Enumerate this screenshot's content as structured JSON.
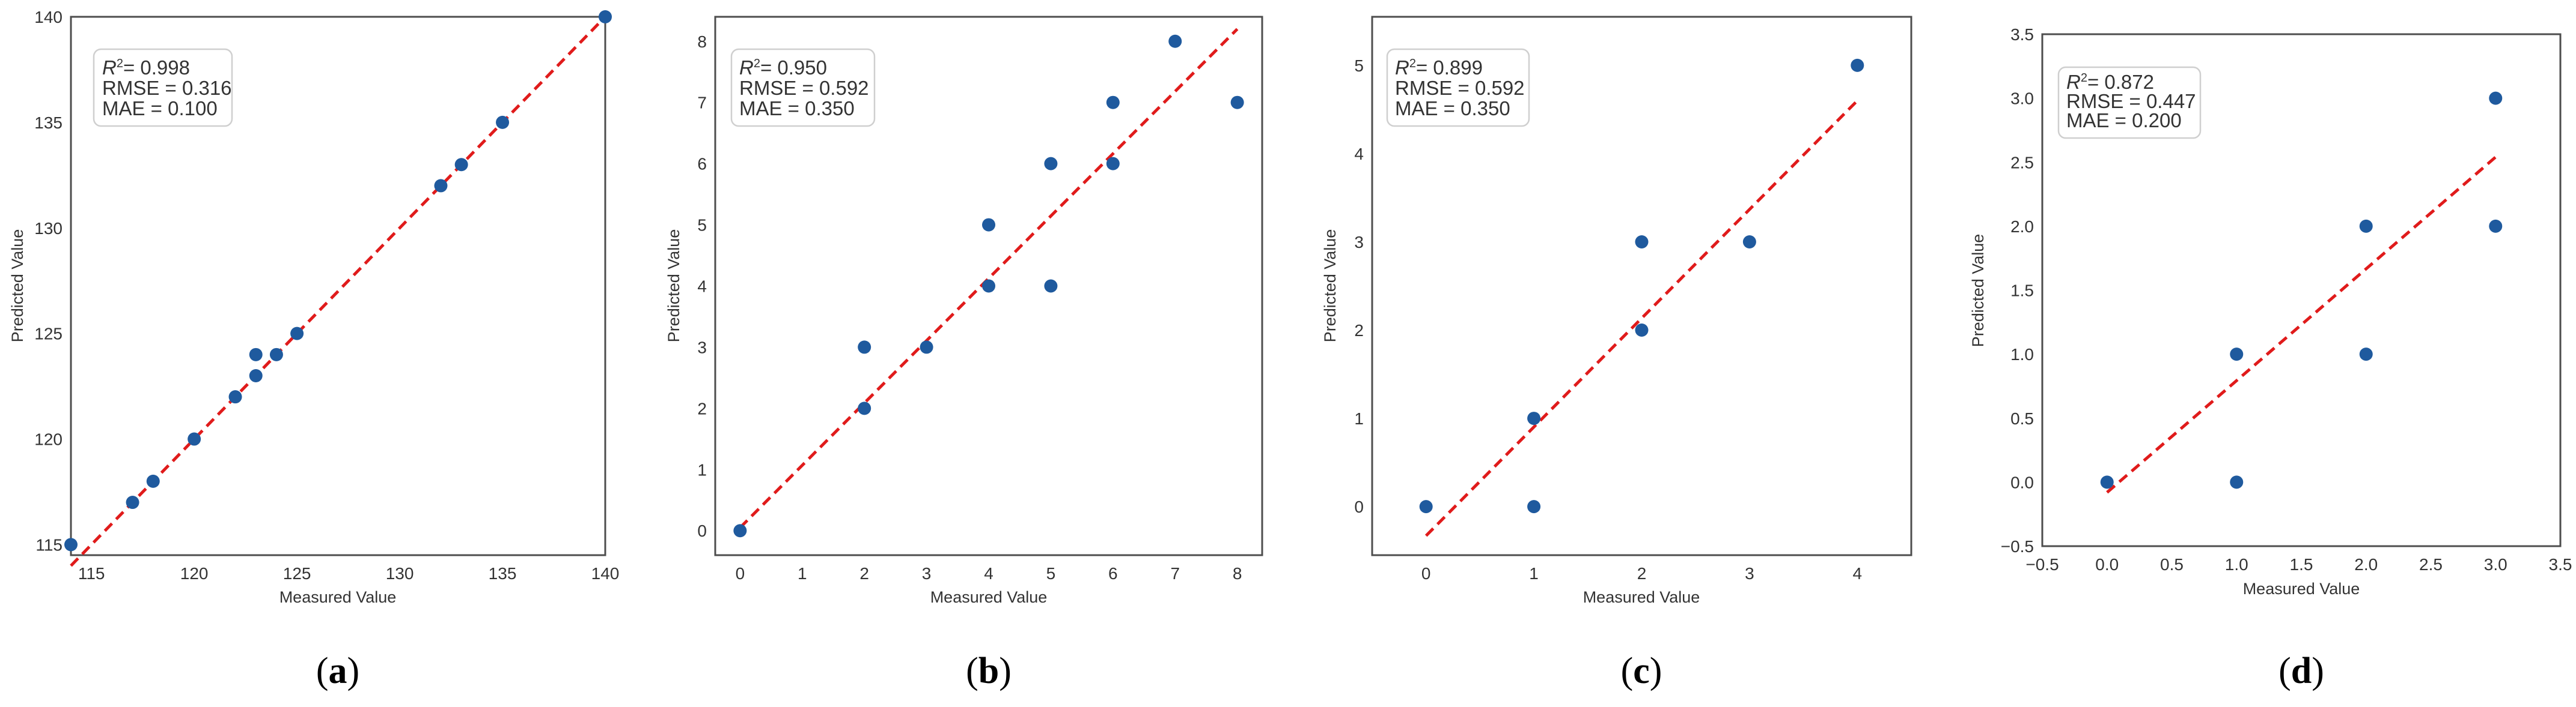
{
  "chart_data": [
    {
      "type": "scatter",
      "panel_label": "a",
      "caption": {
        "open": "(",
        "letter": "a",
        "close": ")"
      },
      "xlabel": "Measured Value",
      "ylabel": "Predicted Value",
      "xlim": [
        114,
        140
      ],
      "ylim": [
        114.5,
        140
      ],
      "xticks": [
        115,
        120,
        125,
        130,
        135,
        140
      ],
      "yticks": [
        115,
        120,
        125,
        130,
        135,
        140
      ],
      "tick_labels_x": [
        "115",
        "120",
        "125",
        "130",
        "135",
        "140"
      ],
      "tick_labels_y": [
        "115",
        "120",
        "125",
        "130",
        "135",
        "140"
      ],
      "stats": {
        "r2": "= 0.998",
        "rmse": "RMSE = 0.316",
        "mae": "MAE = 0.100"
      },
      "fit_line": {
        "x": [
          114,
          140
        ],
        "y": [
          114,
          140
        ],
        "color": "#e01b1b"
      },
      "x": [
        114,
        117,
        118,
        120,
        122,
        123,
        123,
        124,
        125,
        132,
        133,
        135,
        140
      ],
      "y": [
        115,
        117,
        118,
        120,
        122,
        124,
        123,
        124,
        125,
        132,
        133,
        135,
        140
      ],
      "point_color": "#1f5a9e"
    },
    {
      "type": "scatter",
      "panel_label": "b",
      "caption": {
        "open": "(",
        "letter": "b",
        "close": ")"
      },
      "xlabel": "Measured Value",
      "ylabel": "Predicted Value",
      "xlim": [
        -0.4,
        8.4
      ],
      "ylim": [
        -0.4,
        8.4
      ],
      "xticks": [
        0,
        1,
        2,
        3,
        4,
        5,
        6,
        7,
        8
      ],
      "yticks": [
        0,
        1,
        2,
        3,
        4,
        5,
        6,
        7,
        8
      ],
      "tick_labels_x": [
        "0",
        "1",
        "2",
        "3",
        "4",
        "5",
        "6",
        "7",
        "8"
      ],
      "tick_labels_y": [
        "0",
        "1",
        "2",
        "3",
        "4",
        "5",
        "6",
        "7",
        "8"
      ],
      "stats": {
        "r2": "= 0.950",
        "rmse": "RMSE = 0.592",
        "mae": "MAE = 0.350"
      },
      "fit_line": {
        "x": [
          0,
          8
        ],
        "y": [
          0.05,
          8.2
        ],
        "color": "#e01b1b"
      },
      "x": [
        0,
        2,
        2,
        3,
        4,
        4,
        5,
        5,
        6,
        6,
        7,
        8
      ],
      "y": [
        0,
        2,
        3,
        3,
        4,
        5,
        4,
        6,
        6,
        7,
        8,
        7
      ],
      "point_color": "#1f5a9e"
    },
    {
      "type": "scatter",
      "panel_label": "c",
      "caption": {
        "open": "(",
        "letter": "c",
        "close": ")"
      },
      "xlabel": "Measured Value",
      "ylabel": "Predicted Value",
      "xlim": [
        -0.5,
        4.5
      ],
      "ylim": [
        -0.55,
        5.55
      ],
      "xticks": [
        0,
        1,
        2,
        3,
        4
      ],
      "yticks": [
        0,
        1,
        2,
        3,
        4,
        5
      ],
      "tick_labels_x": [
        "0",
        "1",
        "2",
        "3",
        "4"
      ],
      "tick_labels_y": [
        "0",
        "1",
        "2",
        "3",
        "4",
        "5"
      ],
      "stats": {
        "r2": "= 0.899",
        "rmse": "RMSE = 0.592",
        "mae": "MAE = 0.350"
      },
      "fit_line": {
        "x": [
          0,
          4
        ],
        "y": [
          -0.33,
          4.6
        ],
        "color": "#e01b1b"
      },
      "x": [
        0,
        1,
        1,
        2,
        2,
        3,
        4
      ],
      "y": [
        0,
        1,
        0,
        2,
        3,
        3,
        5
      ],
      "point_color": "#1f5a9e"
    },
    {
      "type": "scatter",
      "panel_label": "d",
      "caption": {
        "open": "(",
        "letter": "d",
        "close": ")"
      },
      "xlabel": "Measured Value",
      "ylabel": "Predicted Value",
      "xlim": [
        -0.5,
        3.5
      ],
      "ylim": [
        -0.5,
        3.5
      ],
      "xticks": [
        -0.5,
        0.0,
        0.5,
        1.0,
        1.5,
        2.0,
        2.5,
        3.0,
        3.5
      ],
      "yticks": [
        -0.5,
        0.0,
        0.5,
        1.0,
        1.5,
        2.0,
        2.5,
        3.0,
        3.5
      ],
      "tick_labels_x": [
        "−0.5",
        "0.0",
        "0.5",
        "1.0",
        "1.5",
        "2.0",
        "2.5",
        "3.0",
        "3.5"
      ],
      "tick_labels_y": [
        "−0.5",
        "0.0",
        "0.5",
        "1.0",
        "1.5",
        "2.0",
        "2.5",
        "3.0",
        "3.5"
      ],
      "stats": {
        "r2": "= 0.872",
        "rmse": "RMSE = 0.447",
        "mae": "MAE = 0.200"
      },
      "fit_line": {
        "x": [
          0,
          3
        ],
        "y": [
          -0.08,
          2.54
        ],
        "color": "#e01b1b"
      },
      "x": [
        0,
        1,
        1,
        2,
        2,
        3,
        3
      ],
      "y": [
        0,
        1,
        0,
        2,
        1,
        3,
        2
      ],
      "point_color": "#1f5a9e"
    }
  ]
}
